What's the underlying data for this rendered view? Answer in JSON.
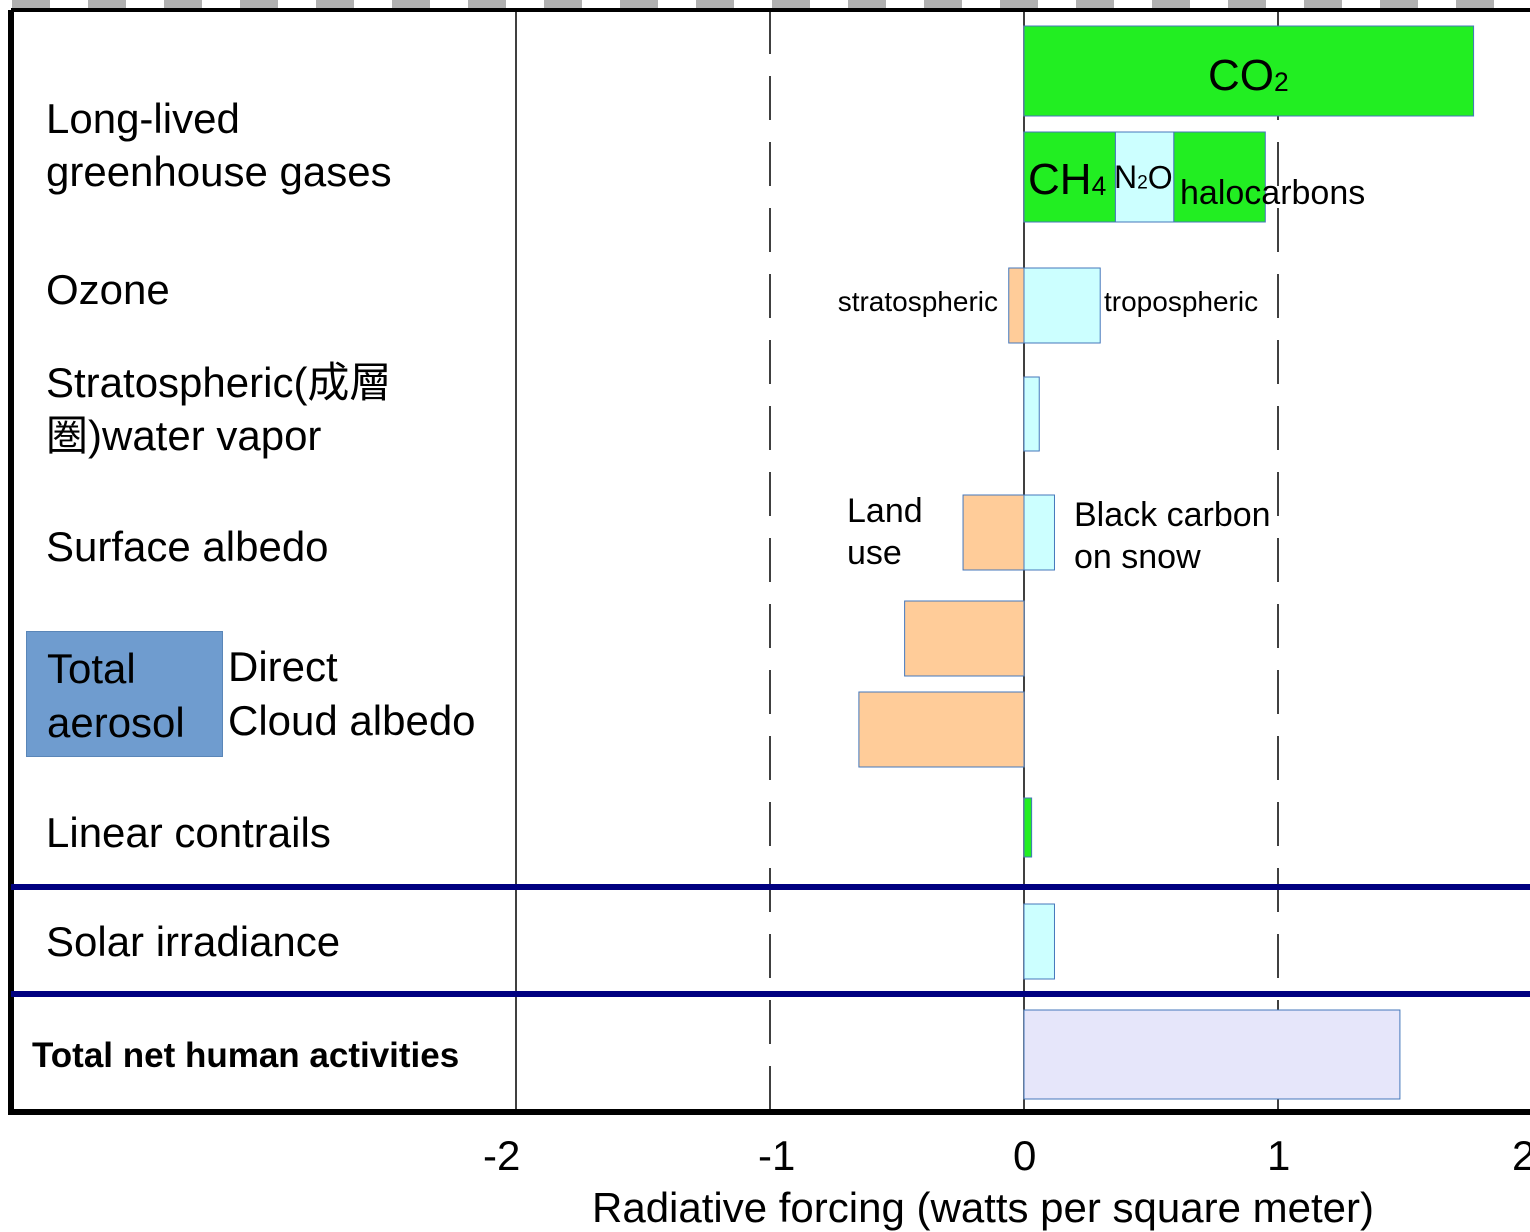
{
  "chart_data": {
    "type": "bar",
    "orientation": "horizontal",
    "xlabel": "Radiative forcing (watts per square meter)",
    "xticks": [
      "-2",
      "-1",
      "0",
      "1",
      "2"
    ],
    "xlim": [
      -2,
      2
    ],
    "grid": "dashed vertical lines at -1 and 1",
    "rows": [
      {
        "label": "Long-lived greenhouse gases",
        "segments": [
          {
            "name": "CO2",
            "text": "CO",
            "sub": "2",
            "start": 0,
            "end": 1.77,
            "color": "#22ee22",
            "line": 1
          },
          {
            "name": "CH4",
            "text": "CH",
            "sub": "4",
            "start": 0,
            "end": 0.36,
            "color": "#22ee22",
            "line": 2
          },
          {
            "name": "N2O",
            "text": "N",
            "sub": "2",
            "tail": "O",
            "start": 0.36,
            "end": 0.59,
            "color": "#ccffff",
            "line": 2
          },
          {
            "name": "halocarbons",
            "text": "halocarbons",
            "start": 0.59,
            "end": 0.95,
            "color": "#22ee22",
            "line": 2
          }
        ]
      },
      {
        "label": "Ozone",
        "segments": [
          {
            "name": "stratospheric",
            "text": "stratospheric",
            "start": -0.06,
            "end": 0,
            "color": "#ffcc99"
          },
          {
            "name": "tropospheric",
            "text": "tropospheric",
            "start": 0,
            "end": 0.3,
            "color": "#ccffff"
          }
        ]
      },
      {
        "label": "Stratospheric(成層圏)water vapor",
        "label_lines": [
          "Stratospheric(成層",
          "圏)water vapor"
        ],
        "segments": [
          {
            "name": "water vapor",
            "start": 0,
            "end": 0.06,
            "color": "#ccffff"
          }
        ]
      },
      {
        "label": "Surface albedo",
        "segments": [
          {
            "name": "Land use",
            "text_lines": [
              "Land",
              "use"
            ],
            "start": -0.24,
            "end": 0,
            "color": "#ffcc99"
          },
          {
            "name": "Black carbon on snow",
            "text_lines": [
              "Black carbon",
              "on snow"
            ],
            "start": 0,
            "end": 0.12,
            "color": "#ccffff"
          }
        ]
      },
      {
        "label": "Total aerosol",
        "group_lines": [
          "Total",
          "aerosol"
        ],
        "sub_rows": [
          {
            "label": "Direct",
            "start": -0.47,
            "end": 0,
            "color": "#ffcc99"
          },
          {
            "label": "Cloud albedo",
            "start": -0.65,
            "end": 0,
            "color": "#ffcc99"
          }
        ]
      },
      {
        "label": "Linear contrails",
        "segments": [
          {
            "name": "contrails",
            "start": 0,
            "end": 0.03,
            "color": "#22ee22"
          }
        ]
      },
      {
        "label": "Solar irradiance",
        "segments": [
          {
            "name": "solar",
            "start": 0,
            "end": 0.12,
            "color": "#ccffff"
          }
        ]
      },
      {
        "label": "Total net human activities",
        "segments": [
          {
            "name": "total net",
            "start": 0,
            "end": 1.48,
            "color": "#e6e6fa"
          }
        ]
      }
    ]
  }
}
